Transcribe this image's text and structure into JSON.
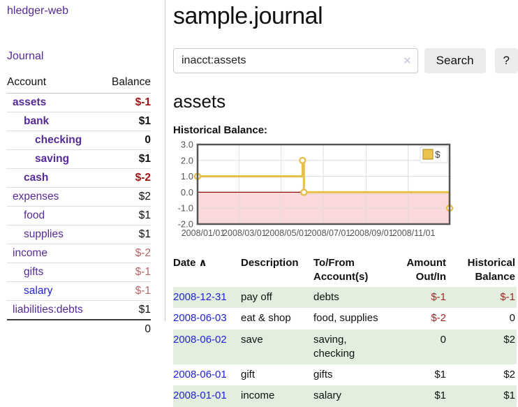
{
  "app": {
    "brand": "hledger-web",
    "nav_journal": "Journal"
  },
  "sidebar": {
    "columns": [
      "Account",
      "Balance"
    ],
    "accounts": [
      {
        "name": "assets",
        "indent": 1,
        "bold": true,
        "balance": "$-1",
        "balance_style": "neg-strong",
        "link_color": "purple"
      },
      {
        "name": "bank",
        "indent": 2,
        "bold": true,
        "balance": "$1",
        "balance_style": "normal",
        "link_color": "purple"
      },
      {
        "name": "checking",
        "indent": 3,
        "bold": true,
        "balance": "0",
        "balance_style": "normal",
        "link_color": "purple"
      },
      {
        "name": "saving",
        "indent": 3,
        "bold": true,
        "balance": "$1",
        "balance_style": "normal",
        "link_color": "purple"
      },
      {
        "name": "cash",
        "indent": 2,
        "bold": true,
        "balance": "$-2",
        "balance_style": "neg-strong",
        "link_color": "purple"
      },
      {
        "name": "expenses",
        "indent": 1,
        "bold": false,
        "balance": "$2",
        "balance_style": "normal",
        "link_color": "purple"
      },
      {
        "name": "food",
        "indent": 2,
        "bold": false,
        "balance": "$1",
        "balance_style": "normal",
        "link_color": "purple"
      },
      {
        "name": "supplies",
        "indent": 2,
        "bold": false,
        "balance": "$1",
        "balance_style": "normal",
        "link_color": "purple"
      },
      {
        "name": "income",
        "indent": 1,
        "bold": false,
        "balance": "$-2",
        "balance_style": "neg-muted",
        "link_color": "purple"
      },
      {
        "name": "gifts",
        "indent": 2,
        "bold": false,
        "balance": "$-1",
        "balance_style": "neg-muted",
        "link_color": "purple"
      },
      {
        "name": "salary",
        "indent": 2,
        "bold": false,
        "balance": "$-1",
        "balance_style": "neg-muted",
        "link_color": "blue"
      },
      {
        "name": "liabilities:debts",
        "indent": 1,
        "bold": false,
        "balance": "$1",
        "balance_style": "normal",
        "link_color": "purple"
      }
    ],
    "total": "0"
  },
  "header": {
    "title": "sample.journal"
  },
  "search": {
    "value": "inacct:assets",
    "clear_icon": "✕",
    "button_label": "Search",
    "help_label": "?"
  },
  "account_page": {
    "title": "assets",
    "chart_label": "Historical Balance:"
  },
  "chart_data": {
    "type": "line",
    "title": "Historical Balance",
    "step": "after",
    "series": [
      {
        "name": "$",
        "points": [
          {
            "date": "2008-01-01",
            "x": 0,
            "y": 1.0
          },
          {
            "date": "2008-06-01",
            "x": 152,
            "y": 2.0
          },
          {
            "date": "2008-06-03",
            "x": 154,
            "y": 0.0
          },
          {
            "date": "2008-12-31",
            "x": 365,
            "y": -1.0
          }
        ]
      }
    ],
    "xlim": [
      0,
      365
    ],
    "ylim": [
      -2.0,
      3.0
    ],
    "yticks": [
      {
        "pos": 3,
        "label": "3.0"
      },
      {
        "pos": 2,
        "label": "2.0"
      },
      {
        "pos": 1,
        "label": "1.0"
      },
      {
        "pos": 0,
        "label": "0.0"
      },
      {
        "pos": -1,
        "label": "-1.0"
      },
      {
        "pos": -2,
        "label": "-2.0"
      }
    ],
    "xticks": [
      {
        "pos": 0,
        "label": "2008/01/01"
      },
      {
        "pos": 60,
        "label": "2008/03/01"
      },
      {
        "pos": 121,
        "label": "2008/05/01"
      },
      {
        "pos": 182,
        "label": "2008/07/01"
      },
      {
        "pos": 244,
        "label": "2008/09/01"
      },
      {
        "pos": 305,
        "label": "2008/11/01"
      }
    ],
    "grid": true,
    "legend": {
      "label": "$",
      "position": "top-right"
    },
    "colors": {
      "line": "#e6c04a",
      "marker_fill": "#ffffff",
      "legend_swatch": "#eac44f",
      "legend_swatch_border": "#b79729",
      "negative_region": "#f9d9d9",
      "zero_line": "#900000",
      "axis_border": "#555555",
      "grid": "#dddddd",
      "tick_text": "#555555"
    }
  },
  "register": {
    "sort_icon": "∧",
    "columns": [
      {
        "lines": [
          "Date"
        ],
        "align": "left",
        "sorted": true
      },
      {
        "lines": [
          "Description"
        ],
        "align": "left",
        "sorted": false
      },
      {
        "lines": [
          "To/From",
          "Account(s)"
        ],
        "align": "left",
        "sorted": false
      },
      {
        "lines": [
          "Amount",
          "Out/In"
        ],
        "align": "right",
        "sorted": false
      },
      {
        "lines": [
          "Historical",
          "Balance"
        ],
        "align": "right",
        "sorted": false
      }
    ],
    "rows": [
      {
        "date": "2008-12-31",
        "description": "pay off",
        "accounts": "debts",
        "amount": "$-1",
        "amount_negative": true,
        "balance": "$-1",
        "balance_negative": true,
        "stripe": true
      },
      {
        "date": "2008-06-03",
        "description": "eat & shop",
        "accounts": "food, supplies",
        "amount": "$-2",
        "amount_negative": true,
        "balance": "0",
        "balance_negative": false,
        "stripe": false
      },
      {
        "date": "2008-06-02",
        "description": "save",
        "accounts": "saving, checking",
        "amount": "0",
        "amount_negative": false,
        "balance": "$2",
        "balance_negative": false,
        "stripe": true
      },
      {
        "date": "2008-06-01",
        "description": "gift",
        "accounts": "gifts",
        "amount": "$1",
        "amount_negative": false,
        "balance": "$2",
        "balance_negative": false,
        "stripe": false
      },
      {
        "date": "2008-01-01",
        "description": "income",
        "accounts": "salary",
        "amount": "$1",
        "amount_negative": false,
        "balance": "$1",
        "balance_negative": false,
        "stripe": true
      }
    ]
  }
}
